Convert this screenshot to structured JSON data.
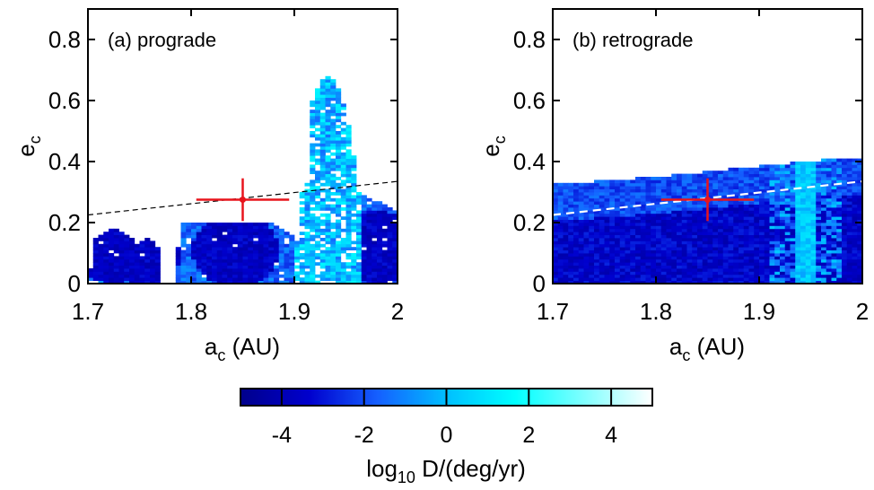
{
  "chart_data": [
    {
      "type": "heatmap",
      "panel_label": "(a) prograde",
      "xlabel": {
        "main": "a",
        "sub": "c",
        "unit": " (AU)"
      },
      "ylabel": {
        "main": "e",
        "sub": "c"
      },
      "xlim": [
        1.7,
        2.0
      ],
      "ylim": [
        0,
        0.9
      ],
      "x_ticks": [
        "1.7",
        "1.8",
        "1.9",
        "2"
      ],
      "x_tick_values": [
        1.7,
        1.8,
        1.9,
        2.0
      ],
      "y_ticks": [
        "0",
        "0.2",
        "0.4",
        "0.6",
        "0.8"
      ],
      "y_tick_values": [
        0,
        0.2,
        0.4,
        0.6,
        0.8
      ],
      "marker": {
        "a": 1.85,
        "e": 0.275,
        "a_err": 0.045,
        "e_err": 0.07,
        "color": "#e8141c"
      },
      "dashed_line": {
        "points": [
          [
            1.7,
            0.225
          ],
          [
            2.0,
            0.335
          ]
        ],
        "color": "#000000"
      },
      "stable_region": [
        {
          "a": [
            1.7,
            1.7
          ],
          "e": [
            0.0,
            0.0
          ]
        },
        {
          "a": [
            1.705,
            1.745
          ],
          "e": [
            0.02,
            0.2
          ]
        },
        {
          "a": [
            1.745,
            1.77
          ],
          "e": [
            0.0,
            0.15
          ]
        },
        {
          "a": [
            1.775,
            1.785
          ],
          "e": [
            0.0,
            0.15
          ]
        },
        {
          "a": [
            1.785,
            1.905
          ],
          "e": [
            0.0,
            0.2
          ]
        },
        {
          "a": [
            1.905,
            1.96
          ],
          "e": [
            0.0,
            0.68
          ]
        },
        {
          "a": [
            1.96,
            2.0
          ],
          "e": [
            0.0,
            0.3
          ]
        }
      ],
      "dark_blobs": [
        {
          "a": 1.724,
          "e": 0.1,
          "r": 0.1
        },
        {
          "a": 1.755,
          "e": 0.095,
          "r": 0.1
        },
        {
          "a": 1.843,
          "e": 0.11,
          "r": 0.12
        },
        {
          "a": 1.98,
          "e": 0.12,
          "r": 0.12
        }
      ]
    },
    {
      "type": "heatmap",
      "panel_label": "(b) retrograde",
      "xlabel": {
        "main": "a",
        "sub": "c",
        "unit": " (AU)"
      },
      "ylabel": {
        "main": "e",
        "sub": "c"
      },
      "xlim": [
        1.7,
        2.0
      ],
      "ylim": [
        0,
        0.9
      ],
      "x_ticks": [
        "1.7",
        "1.8",
        "1.9",
        "2"
      ],
      "x_tick_values": [
        1.7,
        1.8,
        1.9,
        2.0
      ],
      "y_ticks": [
        "0",
        "0.2",
        "0.4",
        "0.6",
        "0.8"
      ],
      "y_tick_values": [
        0,
        0.2,
        0.4,
        0.6,
        0.8
      ],
      "marker": {
        "a": 1.85,
        "e": 0.275,
        "a_err": 0.045,
        "e_err": 0.07,
        "color": "#e8141c"
      },
      "dashed_line": {
        "points": [
          [
            1.7,
            0.225
          ],
          [
            2.0,
            0.335
          ]
        ],
        "color": "#ffffff"
      },
      "upper_boundary": [
        [
          1.7,
          0.325
        ],
        [
          1.8,
          0.35
        ],
        [
          1.9,
          0.385
        ],
        [
          1.96,
          0.405
        ],
        [
          2.0,
          0.415
        ]
      ]
    }
  ],
  "colorbar": {
    "label": {
      "main": "log",
      "sub": "10",
      "rest": " D/(deg/yr)"
    },
    "range": [
      -5,
      5
    ],
    "tick_labels": [
      "-4",
      "-2",
      "0",
      "2",
      "4"
    ],
    "tick_values": [
      -4,
      -2,
      0,
      2,
      4
    ],
    "divider_values": [
      -4,
      -2,
      0,
      2,
      4
    ],
    "colors": [
      "#00008b",
      "#0000cd",
      "#1560ff",
      "#00bfff",
      "#00ffff",
      "#7fffff",
      "#ffffff"
    ]
  }
}
